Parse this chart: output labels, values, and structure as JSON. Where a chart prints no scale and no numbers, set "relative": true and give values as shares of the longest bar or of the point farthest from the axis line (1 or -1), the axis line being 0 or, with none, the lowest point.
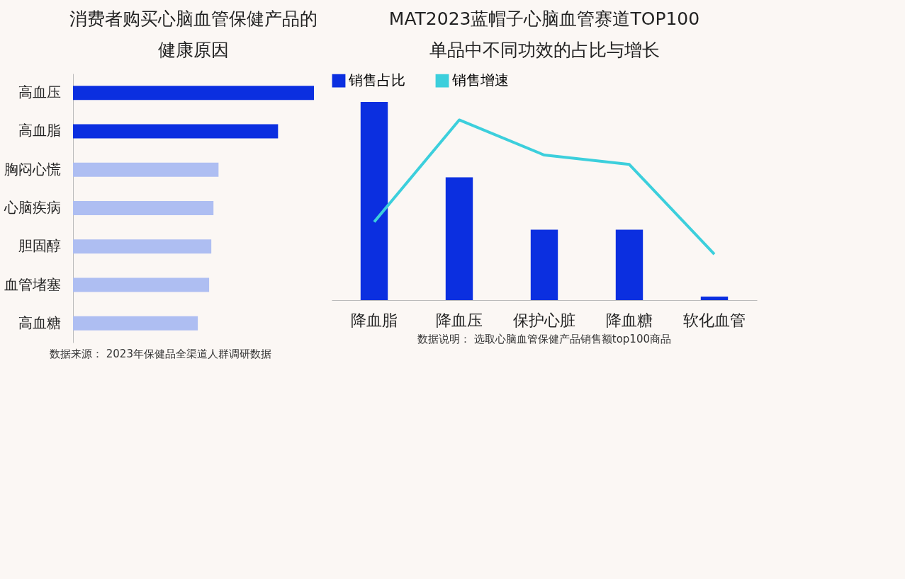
{
  "chart_data": [
    {
      "type": "bar",
      "title": "消费者购买心脑血管保健产品的健康原因",
      "orientation": "horizontal",
      "relative": true,
      "legend": false,
      "categories": [
        "高血压",
        "高血脂",
        "胸闷心慌",
        "心脑疾病",
        "胆固醇",
        "血管堵塞",
        "高血糖"
      ],
      "values": [
        1,
        0.851,
        0.604,
        0.583,
        0.574,
        0.565,
        0.518
      ],
      "colors": [
        "#0b2fe0",
        "#0b2fe0",
        "#aebef2",
        "#aebef2",
        "#aebef2",
        "#aebef2",
        "#aebef2"
      ],
      "annotations": [
        "数据来源： 2023年保健品全渠道人群调研数据"
      ]
    },
    {
      "type": "bar",
      "title": "MAT2023蓝帽子心脑血管赛道TOP100单品中不同功效的占比与增长",
      "relative": true,
      "legend": "top",
      "categories": [
        "降血脂",
        "降血压",
        "保护心脏",
        "降血糖",
        "软化血管"
      ],
      "series": [
        {
          "name": "销售占比",
          "color": "#0b2fe0",
          "values": [
            1,
            0.62,
            0.355,
            0.355,
            0.018
          ]
        },
        {
          "name": "销售增速",
          "type": "line",
          "axis": "y2",
          "color": "#3ccfdc",
          "values": [
            0.434,
            1,
            0.805,
            0.753,
            0.255
          ]
        }
      ],
      "annotations": [
        "数据说明： 选取心脑血管保健产品销售额top100商品"
      ]
    }
  ]
}
